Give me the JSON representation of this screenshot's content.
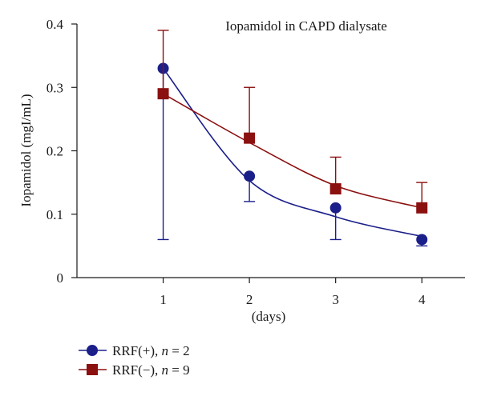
{
  "chart_data": {
    "type": "line",
    "title": "Iopamidol in CAPD dialysate",
    "xlabel": "(days)",
    "ylabel": "Iopamidol (mgI/mL)",
    "x": [
      1,
      2,
      3,
      4
    ],
    "x_ticks": [
      "1",
      "2",
      "3",
      "4"
    ],
    "xlim": [
      0,
      4.5
    ],
    "y_ticks": [
      "0",
      "0.1",
      "0.2",
      "0.3",
      "0.4"
    ],
    "y_tick_values": [
      0,
      0.1,
      0.2,
      0.3,
      0.4
    ],
    "ylim": [
      0,
      0.4
    ],
    "grid": false,
    "legend_position": "bottom-left",
    "series": [
      {
        "name": "RRF(+), n = 2",
        "name_prefix": "RRF(+), ",
        "name_n": "n",
        "name_suffix": " = 2",
        "marker": "circle",
        "color": "#1b1f8a",
        "values": [
          0.33,
          0.16,
          0.11,
          0.06
        ],
        "error_upper": [
          0.33,
          0.16,
          0.11,
          0.06
        ],
        "error_lower": [
          0.06,
          0.12,
          0.06,
          0.05
        ],
        "fit": [
          0.33,
          0.153,
          0.096,
          0.065
        ]
      },
      {
        "name": "RRF(−), n = 9",
        "name_prefix": "RRF(−), ",
        "name_n": "n",
        "name_suffix": " = 9",
        "marker": "square",
        "color": "#8b1010",
        "values": [
          0.29,
          0.22,
          0.14,
          0.11
        ],
        "error_upper": [
          0.39,
          0.3,
          0.19,
          0.15
        ],
        "error_lower": [
          0.29,
          0.22,
          0.14,
          0.11
        ],
        "fit": [
          0.29,
          0.213,
          0.145,
          0.11
        ]
      }
    ]
  }
}
